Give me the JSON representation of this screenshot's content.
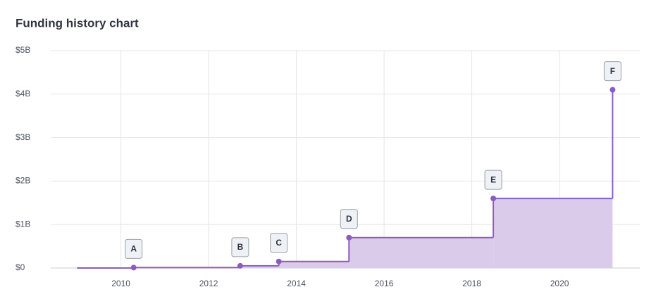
{
  "chart_data": {
    "type": "step-area",
    "title": "Funding history chart",
    "x": [
      2009.0,
      2010.29,
      2012.72,
      2013.6,
      2015.2,
      2018.49,
      2021.21
    ],
    "values": [
      0,
      0.01,
      0.05,
      0.15,
      0.7,
      1.6,
      4.1
    ],
    "labels": [
      null,
      "A",
      "B",
      "C",
      "D",
      "E",
      "F"
    ],
    "color": "#8b5cc0",
    "fill": "#dbcbeb",
    "xlim": [
      2008.4,
      2021.83
    ],
    "xticks": [
      2010,
      2012,
      2014,
      2016,
      2018,
      2020
    ],
    "ylim": [
      0,
      5
    ],
    "yticks": [
      {
        "value": 0,
        "label": "$0"
      },
      {
        "value": 1,
        "label": "$1B"
      },
      {
        "value": 2,
        "label": "$2B"
      },
      {
        "value": 3,
        "label": "$3B"
      },
      {
        "value": 4,
        "label": "$4B"
      },
      {
        "value": 5,
        "label": "$5B"
      }
    ],
    "grid": true
  }
}
